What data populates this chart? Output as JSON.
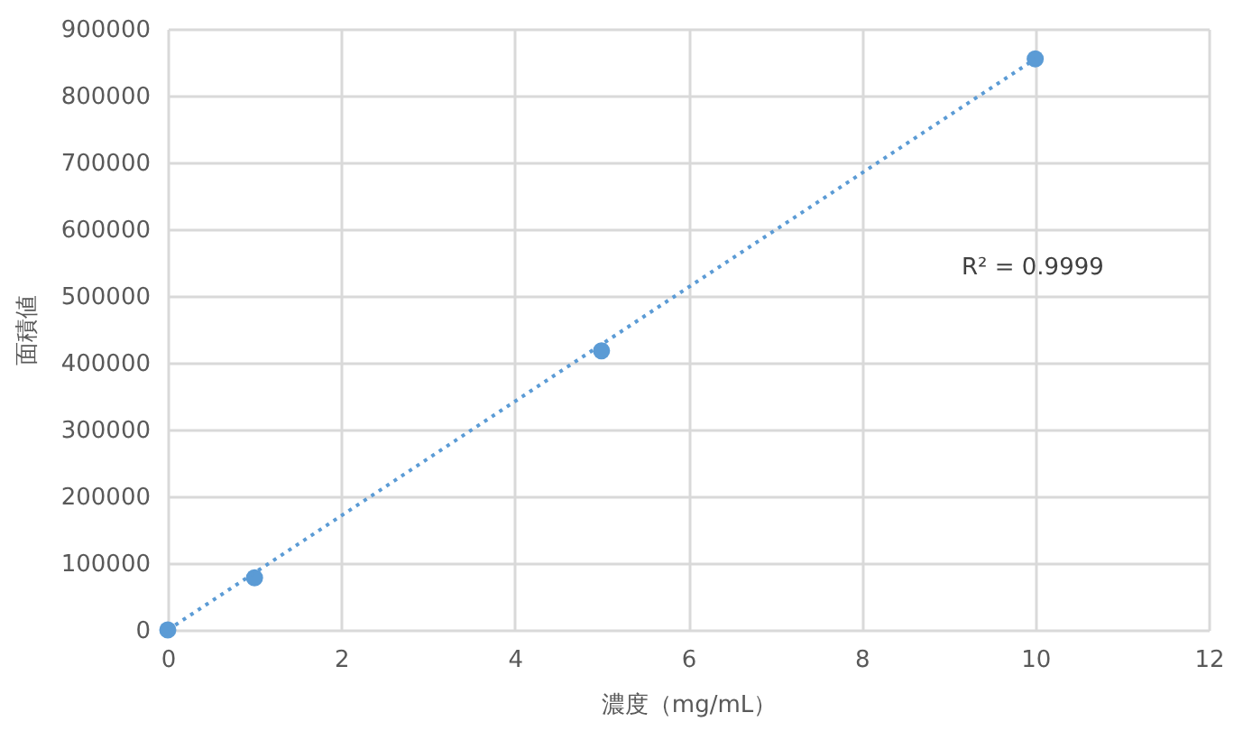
{
  "chart_data": {
    "type": "scatter",
    "xlabel": "濃度（mg/mL）",
    "ylabel": "面積値",
    "x": [
      0,
      1,
      5,
      10
    ],
    "series": [
      {
        "color": "#5b9bd5",
        "marker": "circle",
        "values": [
          0,
          78000,
          418000,
          855000
        ]
      },
      {
        "type": "line",
        "color": "#5b9bd5",
        "line_style": "dotted",
        "marker": "none",
        "x": [
          0,
          10
        ],
        "values": [
          0,
          855000
        ]
      }
    ],
    "annotations": [
      "R² = 0.9999"
    ],
    "xlim": [
      0,
      12
    ],
    "xticks": [
      0,
      2,
      4,
      6,
      8,
      10,
      12
    ],
    "ylim": [
      0,
      900000
    ],
    "yticks": [
      0,
      100000,
      200000,
      300000,
      400000,
      500000,
      600000,
      700000,
      800000,
      900000
    ],
    "grid": true
  }
}
